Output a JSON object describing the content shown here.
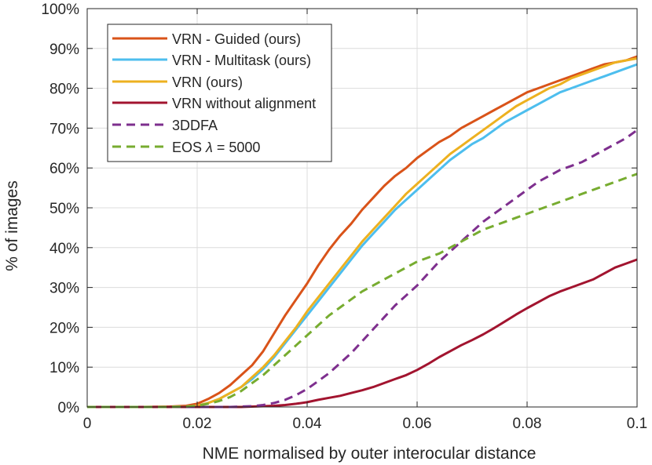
{
  "chart_data": {
    "type": "line",
    "title": "",
    "xlabel": "NME normalised by outer interocular distance",
    "ylabel": "% of images",
    "xlim": [
      0,
      0.1
    ],
    "ylim": [
      0,
      100
    ],
    "x_ticks": [
      "0",
      "0.02",
      "0.04",
      "0.06",
      "0.08",
      "0.1"
    ],
    "x_tick_values": [
      0,
      0.02,
      0.04,
      0.06,
      0.08,
      0.1
    ],
    "y_ticks": [
      "0%",
      "10%",
      "20%",
      "30%",
      "40%",
      "50%",
      "60%",
      "70%",
      "80%",
      "90%",
      "100%"
    ],
    "y_tick_values": [
      0,
      10,
      20,
      30,
      40,
      50,
      60,
      70,
      80,
      90,
      100
    ],
    "grid": true,
    "legend_position": "top-left",
    "x": [
      0,
      0.005,
      0.01,
      0.015,
      0.018,
      0.02,
      0.022,
      0.024,
      0.026,
      0.028,
      0.03,
      0.032,
      0.034,
      0.036,
      0.038,
      0.04,
      0.042,
      0.044,
      0.046,
      0.048,
      0.05,
      0.052,
      0.054,
      0.056,
      0.058,
      0.06,
      0.062,
      0.064,
      0.066,
      0.068,
      0.07,
      0.072,
      0.074,
      0.076,
      0.078,
      0.08,
      0.082,
      0.084,
      0.086,
      0.088,
      0.09,
      0.092,
      0.094,
      0.096,
      0.098,
      0.1
    ],
    "series": [
      {
        "name": "VRN - Guided (ours)",
        "color": "#d95319",
        "dash": "solid",
        "values": [
          0,
          0,
          0,
          0.1,
          0.3,
          0.8,
          2,
          3.5,
          5.5,
          8,
          10.5,
          14,
          18.5,
          23,
          27,
          31,
          35.5,
          39.5,
          43,
          46,
          49.5,
          52.5,
          55.5,
          58,
          60,
          62.5,
          64.5,
          66.5,
          68,
          70,
          71.5,
          73,
          74.5,
          76,
          77.5,
          79,
          80,
          81,
          82,
          83,
          84,
          85,
          86,
          86.5,
          87,
          88
        ]
      },
      {
        "name": "VRN - Multitask (ours)",
        "color": "#4dbeee",
        "dash": "solid",
        "values": [
          0,
          0,
          0,
          0,
          0.1,
          0.3,
          1,
          2,
          3.5,
          5,
          7,
          9.5,
          12.5,
          16,
          19.5,
          23,
          26.5,
          30,
          33.5,
          37,
          40.5,
          43.5,
          46.5,
          49.5,
          52,
          54.5,
          57,
          59.5,
          62,
          64,
          66,
          67.5,
          69.5,
          71.5,
          73,
          74.5,
          76,
          77.5,
          79,
          80,
          81,
          82,
          83,
          84,
          85,
          86
        ]
      },
      {
        "name": "VRN (ours)",
        "color": "#edb120",
        "dash": "solid",
        "values": [
          0,
          0,
          0,
          0,
          0.1,
          0.3,
          1,
          2,
          3.5,
          5,
          7.5,
          10,
          13,
          16.5,
          20,
          24,
          27.5,
          31,
          34.5,
          38,
          41.5,
          44.5,
          47.5,
          50.5,
          53.5,
          56,
          58.5,
          61,
          63.5,
          65.5,
          67.5,
          69.5,
          71.5,
          73.5,
          75.5,
          77,
          78.5,
          80,
          81,
          82.5,
          83.5,
          84.5,
          85.5,
          86.5,
          87,
          87.5
        ]
      },
      {
        "name": "VRN without alignment",
        "color": "#a2142f",
        "dash": "solid",
        "values": [
          0,
          0,
          0,
          0,
          0,
          0,
          0,
          0,
          0,
          0,
          0.1,
          0.2,
          0.3,
          0.5,
          0.8,
          1.2,
          1.8,
          2.3,
          2.8,
          3.5,
          4.2,
          5,
          6,
          7,
          8,
          9.3,
          10.8,
          12.5,
          14,
          15.5,
          16.8,
          18.2,
          19.8,
          21.5,
          23.2,
          24.8,
          26.3,
          27.8,
          29,
          30,
          31,
          32,
          33.5,
          35,
          36,
          37
        ]
      },
      {
        "name": "3DDFA",
        "color": "#7e2f8e",
        "dash": "dashed",
        "values": [
          0,
          0,
          0,
          0,
          0,
          0,
          0,
          0,
          0,
          0.1,
          0.2,
          0.5,
          1,
          1.8,
          3,
          4.5,
          6.5,
          8.5,
          11,
          13.5,
          16.5,
          19.5,
          22.5,
          25.5,
          28,
          30.5,
          33.5,
          36.5,
          39,
          41.5,
          44,
          46.5,
          48.5,
          50.5,
          52.5,
          54.5,
          56.5,
          58,
          59.5,
          60.5,
          61.5,
          63,
          64.5,
          66,
          67.5,
          69.5
        ]
      },
      {
        "name": "EOS λ = 5000",
        "color": "#77ac30",
        "dash": "dashed",
        "values": [
          0,
          0,
          0,
          0,
          0.1,
          0.3,
          0.8,
          1.5,
          2.5,
          4,
          6,
          8,
          10.5,
          13,
          15.5,
          18,
          20.5,
          23,
          25,
          27,
          29,
          30.5,
          32,
          33.5,
          35,
          36.5,
          37.5,
          38.5,
          40,
          41.5,
          43,
          44.5,
          45.5,
          46.5,
          47.5,
          48.5,
          49.5,
          50.5,
          51.5,
          52.5,
          53.5,
          54.5,
          55.5,
          56.5,
          57.5,
          58.5
        ]
      }
    ],
    "legend_labels": {
      "vrn_guided": "VRN - Guided (ours)",
      "vrn_multitask": "VRN - Multitask (ours)",
      "vrn": "VRN (ours)",
      "vrn_noalign": "VRN without alignment",
      "ddfa": "3DDFA",
      "eos_prefix": "EOS ",
      "eos_lambda": "λ",
      "eos_suffix": " = 5000"
    }
  }
}
